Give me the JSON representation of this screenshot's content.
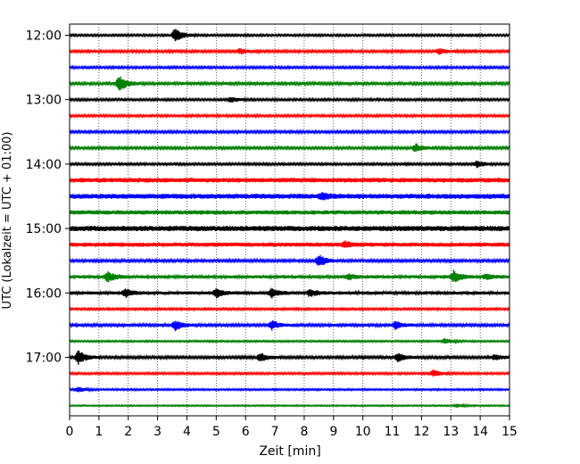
{
  "chart_data": {
    "type": "line",
    "title": "",
    "xlabel": "Zeit  [min]",
    "ylabel": "UTC (Lokalzeit = UTC + 01:00)",
    "xlim": [
      0,
      15
    ],
    "x_ticks": [
      "0",
      "1",
      "2",
      "3",
      "4",
      "5",
      "6",
      "7",
      "8",
      "9",
      "10",
      "11",
      "12",
      "13",
      "14",
      "15"
    ],
    "y_ticks": [
      "12:00",
      "13:00",
      "14:00",
      "15:00",
      "16:00",
      "17:00"
    ],
    "grid": "vertical dotted",
    "trace_colors": [
      "#000000",
      "#ff0000",
      "#0000ff",
      "#008000"
    ],
    "series": [
      {
        "start": "12:00",
        "amp": 1.2,
        "events": [
          [
            3.6,
            9
          ]
        ]
      },
      {
        "start": "12:15",
        "amp": 1.4,
        "events": [
          [
            5.8,
            3
          ],
          [
            12.6,
            3
          ]
        ]
      },
      {
        "start": "12:30",
        "amp": 1.3,
        "events": []
      },
      {
        "start": "12:45",
        "amp": 1.6,
        "events": [
          [
            1.7,
            9
          ]
        ]
      },
      {
        "start": "13:00",
        "amp": 1.3,
        "events": [
          [
            5.5,
            3
          ]
        ]
      },
      {
        "start": "13:15",
        "amp": 1.3,
        "events": []
      },
      {
        "start": "13:30",
        "amp": 1.4,
        "events": []
      },
      {
        "start": "13:45",
        "amp": 1.4,
        "events": [
          [
            11.8,
            5
          ]
        ]
      },
      {
        "start": "14:00",
        "amp": 1.3,
        "events": [
          [
            13.9,
            4
          ]
        ]
      },
      {
        "start": "14:15",
        "amp": 2.6,
        "events": []
      },
      {
        "start": "14:30",
        "amp": 2.8,
        "events": [
          [
            8.6,
            3
          ]
        ]
      },
      {
        "start": "14:45",
        "amp": 2.4,
        "events": []
      },
      {
        "start": "15:00",
        "amp": 3.0,
        "events": []
      },
      {
        "start": "15:15",
        "amp": 2.4,
        "events": [
          [
            9.4,
            3
          ]
        ]
      },
      {
        "start": "15:30",
        "amp": 1.5,
        "events": [
          [
            8.5,
            8
          ]
        ]
      },
      {
        "start": "15:45",
        "amp": 1.8,
        "events": [
          [
            1.3,
            6
          ],
          [
            13.1,
            7
          ],
          [
            9.5,
            3
          ],
          [
            14.2,
            3
          ]
        ]
      },
      {
        "start": "16:00",
        "amp": 1.8,
        "events": [
          [
            1.9,
            5
          ],
          [
            5.0,
            5
          ],
          [
            6.9,
            5
          ],
          [
            8.2,
            4
          ]
        ]
      },
      {
        "start": "16:15",
        "amp": 1.2,
        "events": []
      },
      {
        "start": "16:30",
        "amp": 1.6,
        "events": [
          [
            3.6,
            6
          ],
          [
            6.9,
            5
          ],
          [
            11.1,
            4
          ]
        ]
      },
      {
        "start": "16:45",
        "amp": 1.0,
        "events": [
          [
            12.8,
            3
          ]
        ]
      },
      {
        "start": "17:00",
        "amp": 1.5,
        "events": [
          [
            0.3,
            8
          ],
          [
            6.5,
            5
          ],
          [
            11.2,
            5
          ],
          [
            14.5,
            3
          ]
        ]
      },
      {
        "start": "17:15",
        "amp": 1.2,
        "events": [
          [
            12.4,
            4
          ]
        ]
      },
      {
        "start": "17:30",
        "amp": 1.0,
        "events": [
          [
            0.3,
            3
          ]
        ]
      },
      {
        "start": "17:45",
        "amp": 0.8,
        "events": [
          [
            13.2,
            2
          ]
        ]
      }
    ]
  }
}
